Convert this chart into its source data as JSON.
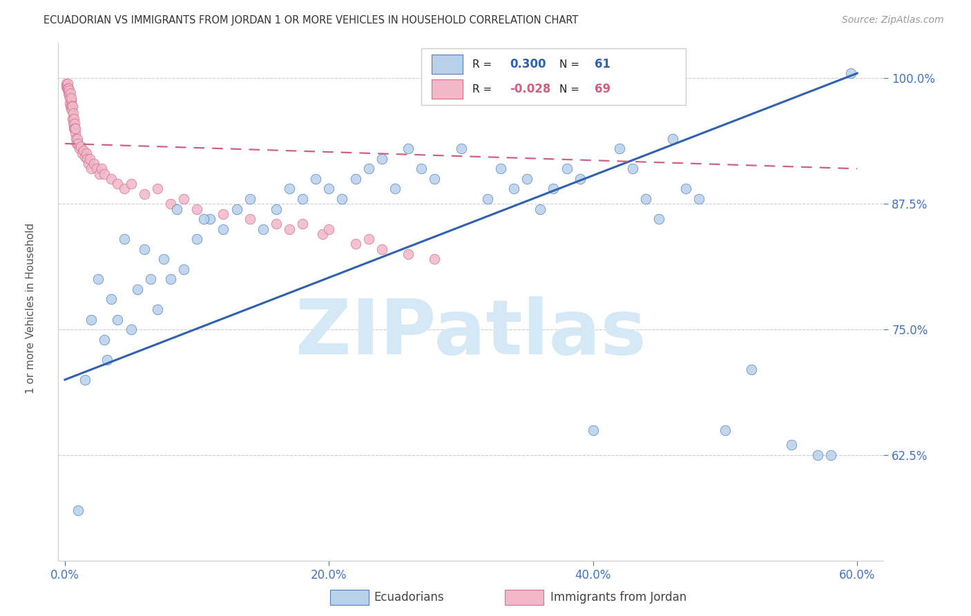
{
  "title": "ECUADORIAN VS IMMIGRANTS FROM JORDAN 1 OR MORE VEHICLES IN HOUSEHOLD CORRELATION CHART",
  "source": "Source: ZipAtlas.com",
  "xlim": [
    -0.5,
    62.0
  ],
  "ylim": [
    52.0,
    103.5
  ],
  "xticks": [
    0.0,
    20.0,
    40.0,
    60.0
  ],
  "yticks": [
    62.5,
    75.0,
    87.5,
    100.0
  ],
  "ylabel": "1 or more Vehicles in Household",
  "blue_R": 0.3,
  "blue_N": 61,
  "pink_R": -0.028,
  "pink_N": 69,
  "blue_scatter_color": "#b8d0ea",
  "blue_edge_color": "#5080c0",
  "blue_line_color": "#3060b0",
  "pink_scatter_color": "#f0b8c8",
  "pink_edge_color": "#d07090",
  "pink_line_color": "#d06080",
  "watermark_color": "#d5e8f5",
  "title_color": "#333333",
  "source_color": "#999999",
  "tick_color": "#4472c4",
  "grid_color": "#cccccc",
  "legend_blue_label": "Ecuadorians",
  "legend_pink_label": "Immigrants from Jordan",
  "blue_line_x": [
    0.0,
    60.0
  ],
  "blue_line_y": [
    70.0,
    100.5
  ],
  "pink_line_x": [
    0.0,
    60.0
  ],
  "pink_line_y": [
    93.5,
    91.0
  ],
  "blue_x": [
    1.0,
    1.5,
    2.0,
    2.5,
    3.0,
    3.5,
    4.0,
    5.0,
    5.5,
    6.0,
    7.0,
    7.5,
    8.0,
    9.0,
    10.0,
    11.0,
    12.0,
    13.0,
    14.0,
    15.0,
    16.0,
    17.0,
    18.0,
    19.0,
    20.0,
    21.0,
    22.0,
    23.0,
    24.0,
    25.0,
    26.0,
    27.0,
    28.0,
    30.0,
    32.0,
    33.0,
    34.0,
    35.0,
    36.0,
    37.0,
    38.0,
    39.0,
    40.0,
    42.0,
    43.0,
    44.0,
    45.0,
    46.0,
    47.0,
    48.0,
    50.0,
    52.0,
    55.0,
    57.0,
    58.0,
    59.5,
    3.2,
    4.5,
    6.5,
    8.5,
    10.5
  ],
  "blue_y": [
    57.0,
    70.0,
    76.0,
    80.0,
    74.0,
    78.0,
    76.0,
    75.0,
    79.0,
    83.0,
    77.0,
    82.0,
    80.0,
    81.0,
    84.0,
    86.0,
    85.0,
    87.0,
    88.0,
    85.0,
    87.0,
    89.0,
    88.0,
    90.0,
    89.0,
    88.0,
    90.0,
    91.0,
    92.0,
    89.0,
    93.0,
    91.0,
    90.0,
    93.0,
    88.0,
    91.0,
    89.0,
    90.0,
    87.0,
    89.0,
    91.0,
    90.0,
    65.0,
    93.0,
    91.0,
    88.0,
    86.0,
    94.0,
    89.0,
    88.0,
    65.0,
    71.0,
    63.5,
    62.5,
    62.5,
    100.5,
    72.0,
    84.0,
    80.0,
    87.0,
    86.0
  ],
  "pink_x": [
    0.1,
    0.12,
    0.15,
    0.18,
    0.2,
    0.22,
    0.25,
    0.28,
    0.3,
    0.32,
    0.35,
    0.38,
    0.4,
    0.42,
    0.45,
    0.48,
    0.5,
    0.52,
    0.55,
    0.58,
    0.6,
    0.62,
    0.65,
    0.68,
    0.7,
    0.72,
    0.75,
    0.78,
    0.8,
    0.85,
    0.9,
    0.95,
    1.0,
    1.1,
    1.2,
    1.3,
    1.4,
    1.5,
    1.6,
    1.7,
    1.8,
    1.9,
    2.0,
    2.2,
    2.4,
    2.6,
    2.8,
    3.0,
    3.5,
    4.0,
    4.5,
    5.0,
    6.0,
    7.0,
    8.0,
    9.0,
    10.0,
    12.0,
    14.0,
    16.0,
    17.0,
    18.0,
    19.5,
    20.0,
    22.0,
    23.0,
    24.0,
    26.0,
    28.0
  ],
  "pink_y": [
    99.5,
    99.2,
    99.0,
    99.3,
    99.5,
    99.0,
    98.5,
    99.0,
    98.3,
    98.8,
    97.5,
    98.0,
    98.5,
    97.2,
    97.8,
    97.0,
    98.0,
    97.3,
    96.8,
    97.2,
    96.0,
    96.5,
    95.5,
    96.0,
    95.0,
    95.5,
    95.0,
    94.5,
    95.0,
    94.0,
    93.5,
    94.0,
    93.5,
    93.0,
    93.2,
    92.5,
    92.8,
    92.2,
    92.5,
    92.0,
    91.5,
    92.0,
    91.0,
    91.5,
    91.0,
    90.5,
    91.0,
    90.5,
    90.0,
    89.5,
    89.0,
    89.5,
    88.5,
    89.0,
    87.5,
    88.0,
    87.0,
    86.5,
    86.0,
    85.5,
    85.0,
    85.5,
    84.5,
    85.0,
    83.5,
    84.0,
    83.0,
    82.5,
    82.0
  ]
}
